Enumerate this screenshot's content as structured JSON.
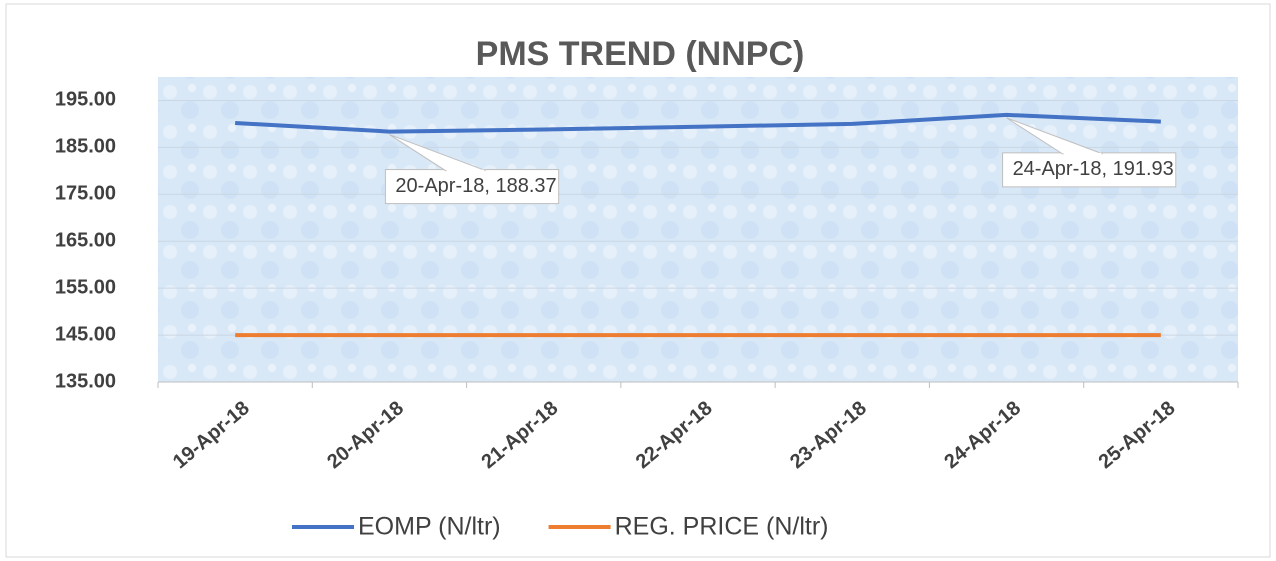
{
  "chart_data": {
    "type": "line",
    "title": "PMS TREND (NNPC)",
    "categories": [
      "19-Apr-18",
      "20-Apr-18",
      "21-Apr-18",
      "22-Apr-18",
      "23-Apr-18",
      "24-Apr-18",
      "25-Apr-18"
    ],
    "series": [
      {
        "name": "EOMP (N/ltr)",
        "color": "#4472c4",
        "values": [
          190.2,
          188.37,
          188.8,
          189.4,
          190.0,
          191.93,
          190.5
        ],
        "value_labels": [
          null,
          "20-Apr-18, 188.37",
          null,
          null,
          null,
          "24-Apr-18, 191.93",
          null
        ]
      },
      {
        "name": "REG. PRICE (N/ltr)",
        "color": "#ed7d31",
        "values": [
          145,
          145,
          145,
          145,
          145,
          145,
          145
        ]
      }
    ],
    "ylim": [
      135,
      200
    ],
    "yticks": [
      {
        "value": 135,
        "label": "135.00"
      },
      {
        "value": 145,
        "label": "145.00"
      },
      {
        "value": 155,
        "label": "155.00"
      },
      {
        "value": 165,
        "label": "165.00"
      },
      {
        "value": 175,
        "label": "175.00"
      },
      {
        "value": 185,
        "label": "185.00"
      },
      {
        "value": 195,
        "label": "195.00"
      }
    ],
    "grid": true,
    "legend": "bottom"
  }
}
